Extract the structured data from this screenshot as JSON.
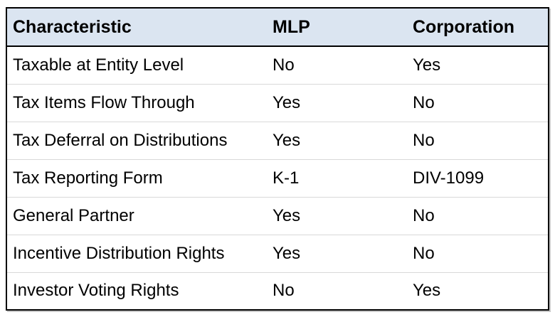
{
  "table": {
    "columns": {
      "characteristic": "Characteristic",
      "mlp": "MLP",
      "corporation": "Corporation"
    },
    "rows": [
      {
        "characteristic": "Taxable at Entity Level",
        "mlp": "No",
        "corporation": "Yes"
      },
      {
        "characteristic": "Tax Items Flow Through",
        "mlp": "Yes",
        "corporation": "No"
      },
      {
        "characteristic": "Tax Deferral on Distributions",
        "mlp": "Yes",
        "corporation": "No"
      },
      {
        "characteristic": "Tax Reporting Form",
        "mlp": "K-1",
        "corporation": "DIV-1099"
      },
      {
        "characteristic": "General Partner",
        "mlp": "Yes",
        "corporation": "No"
      },
      {
        "characteristic": "Incentive Distribution Rights",
        "mlp": "Yes",
        "corporation": "No"
      },
      {
        "characteristic": "Investor Voting Rights",
        "mlp": "No",
        "corporation": "Yes"
      }
    ]
  },
  "colors": {
    "header_background": "#dbe5f1",
    "outer_border": "#000000",
    "row_divider": "#d9d9d9",
    "text": "#000000"
  }
}
